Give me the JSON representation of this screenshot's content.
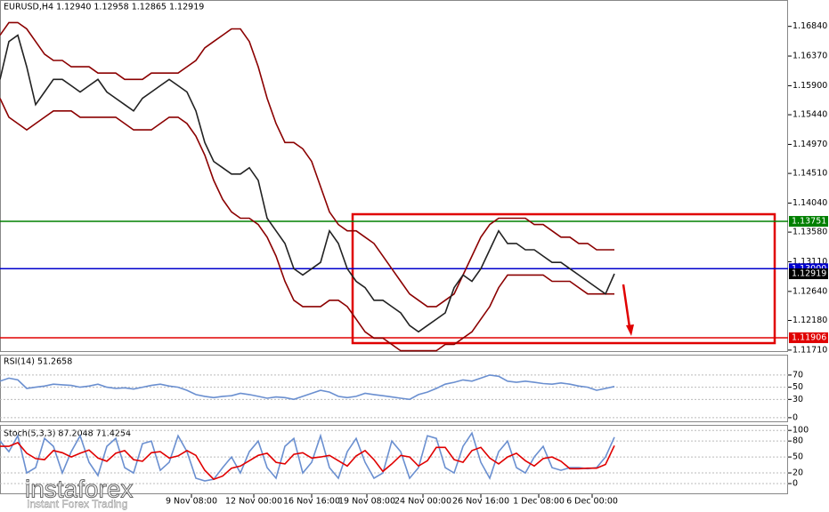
{
  "chart_data": [
    {
      "type": "line",
      "title": "EURUSD,H4 1.12940 1.12958 1.12865 1.12919",
      "xlim": [
        0,
        88.5
      ],
      "ylim": [
        1.1168,
        1.1723
      ],
      "yticks": [
        {
          "value": 1.1684,
          "label": "1.16840"
        },
        {
          "value": 1.1637,
          "label": "1.16370"
        },
        {
          "value": 1.159,
          "label": "1.15900"
        },
        {
          "value": 1.1544,
          "label": "1.15440"
        },
        {
          "value": 1.1497,
          "label": "1.14970"
        },
        {
          "value": 1.1451,
          "label": "1.14510"
        },
        {
          "value": 1.1404,
          "label": "1.14040"
        },
        {
          "value": 1.1358,
          "label": "1.13580"
        },
        {
          "value": 1.1311,
          "label": "1.13110"
        },
        {
          "value": 1.1264,
          "label": "1.12640"
        },
        {
          "value": 1.1218,
          "label": "1.12180"
        },
        {
          "value": 1.1171,
          "label": "1.11710"
        }
      ],
      "levels": [
        {
          "value": 1.13751,
          "label": "1.13751",
          "color": "#008000"
        },
        {
          "value": 1.13,
          "label": "1.13000",
          "color": "#0000cc"
        },
        {
          "value": 1.11906,
          "label": "1.11906",
          "color": "#e00000"
        }
      ],
      "price_tag": {
        "value": 1.12919,
        "label": "1.12919",
        "color": "#000000"
      },
      "series": [
        {
          "color": "#8b0000",
          "values": [
            1.167,
            1.169,
            1.169,
            1.168,
            1.166,
            1.164,
            1.163,
            1.163,
            1.162,
            1.162,
            1.162,
            1.161,
            1.161,
            1.161,
            1.16,
            1.16,
            1.16,
            1.161,
            1.161,
            1.161,
            1.161,
            1.162,
            1.163,
            1.165,
            1.166,
            1.167,
            1.168,
            1.168,
            1.166,
            1.162,
            1.157,
            1.153,
            1.15,
            1.15,
            1.149,
            1.147,
            1.143,
            1.139,
            1.137,
            1.136,
            1.136,
            1.135,
            1.134,
            1.132,
            1.13,
            1.128,
            1.126,
            1.125,
            1.124,
            1.124,
            1.125,
            1.126,
            1.129,
            1.132,
            1.135,
            1.137,
            1.138,
            1.138,
            1.138,
            1.138,
            1.137,
            1.137,
            1.136,
            1.135,
            1.135,
            1.134,
            1.134,
            1.133,
            1.133,
            1.133
          ]
        },
        {
          "color": "#8b0000",
          "values": [
            1.157,
            1.154,
            1.153,
            1.152,
            1.153,
            1.154,
            1.155,
            1.155,
            1.155,
            1.154,
            1.154,
            1.154,
            1.154,
            1.154,
            1.153,
            1.152,
            1.152,
            1.152,
            1.153,
            1.154,
            1.154,
            1.153,
            1.151,
            1.148,
            1.144,
            1.141,
            1.139,
            1.138,
            1.138,
            1.137,
            1.135,
            1.132,
            1.128,
            1.125,
            1.124,
            1.124,
            1.124,
            1.125,
            1.125,
            1.124,
            1.122,
            1.12,
            1.119,
            1.119,
            1.118,
            1.117,
            1.117,
            1.117,
            1.117,
            1.117,
            1.118,
            1.118,
            1.119,
            1.12,
            1.122,
            1.124,
            1.127,
            1.129,
            1.129,
            1.129,
            1.129,
            1.129,
            1.128,
            1.128,
            1.128,
            1.127,
            1.126,
            1.126,
            1.126,
            1.126
          ]
        },
        {
          "color": "#222222",
          "values": [
            1.16,
            1.166,
            1.167,
            1.162,
            1.156,
            1.158,
            1.16,
            1.16,
            1.159,
            1.158,
            1.159,
            1.16,
            1.158,
            1.157,
            1.156,
            1.155,
            1.157,
            1.158,
            1.159,
            1.16,
            1.159,
            1.158,
            1.155,
            1.15,
            1.147,
            1.146,
            1.145,
            1.145,
            1.146,
            1.144,
            1.138,
            1.136,
            1.134,
            1.13,
            1.129,
            1.13,
            1.131,
            1.136,
            1.134,
            1.13,
            1.128,
            1.127,
            1.125,
            1.125,
            1.124,
            1.123,
            1.121,
            1.12,
            1.121,
            1.122,
            1.123,
            1.127,
            1.129,
            1.128,
            1.13,
            1.133,
            1.136,
            1.134,
            1.134,
            1.133,
            1.133,
            1.132,
            1.131,
            1.131,
            1.13,
            1.129,
            1.128,
            1.127,
            1.126,
            1.12919
          ]
        }
      ]
    },
    {
      "type": "line",
      "title": "RSI(14) 51.2658",
      "xlim": [
        0,
        88.5
      ],
      "ylim": [
        -6,
        102
      ],
      "yticks": [
        70,
        50,
        30,
        0
      ],
      "series": [
        {
          "color": "#6a8fd0",
          "values": [
            60,
            65,
            62,
            48,
            50,
            52,
            55,
            54,
            53,
            50,
            52,
            55,
            50,
            48,
            49,
            47,
            50,
            53,
            55,
            52,
            50,
            45,
            38,
            35,
            33,
            35,
            36,
            40,
            38,
            35,
            32,
            34,
            33,
            30,
            35,
            40,
            45,
            42,
            35,
            33,
            35,
            40,
            38,
            36,
            34,
            32,
            30,
            38,
            42,
            48,
            55,
            58,
            62,
            60,
            65,
            70,
            68,
            60,
            58,
            60,
            58,
            56,
            55,
            57,
            55,
            52,
            50,
            45,
            48,
            51.2658
          ]
        }
      ]
    },
    {
      "type": "line",
      "title": "Stoch(5,3,3) 87.2048 71.4254",
      "xlim": [
        0,
        88.5
      ],
      "ylim": [
        -15,
        107
      ],
      "yticks": [
        100,
        80,
        50,
        20,
        0
      ],
      "xticks": [
        {
          "value": 21.5,
          "label": "9 Nov 08:00"
        },
        {
          "value": 28.5,
          "label": "12 Nov 00:00"
        },
        {
          "value": 35,
          "label": "16 Nov 16:00"
        },
        {
          "value": 41.2,
          "label": "19 Nov 08:00"
        },
        {
          "value": 47.5,
          "label": "24 Nov 00:00"
        },
        {
          "value": 54,
          "label": "26 Nov 16:00"
        },
        {
          "value": 60.5,
          "label": "1 Dec 08:00"
        },
        {
          "value": 66.5,
          "label": "6 Dec 00:00"
        }
      ],
      "series": [
        {
          "color": "#6a8fd0",
          "values": [
            80,
            60,
            90,
            20,
            30,
            85,
            70,
            20,
            60,
            90,
            40,
            15,
            70,
            85,
            30,
            20,
            75,
            80,
            25,
            40,
            90,
            60,
            10,
            5,
            8,
            30,
            50,
            20,
            60,
            80,
            30,
            10,
            70,
            85,
            20,
            40,
            90,
            30,
            10,
            60,
            85,
            40,
            10,
            20,
            80,
            60,
            10,
            30,
            90,
            85,
            30,
            20,
            70,
            95,
            40,
            10,
            60,
            80,
            30,
            20,
            50,
            70,
            30,
            25,
            30,
            30,
            28,
            30,
            50,
            87.2048
          ]
        },
        {
          "color": "#e00000",
          "values": [
            70,
            70,
            77,
            57,
            47,
            45,
            62,
            58,
            50,
            57,
            63,
            48,
            42,
            57,
            62,
            45,
            42,
            58,
            60,
            48,
            52,
            62,
            53,
            25,
            8,
            14,
            29,
            33,
            43,
            53,
            57,
            40,
            37,
            55,
            58,
            48,
            50,
            53,
            43,
            33,
            52,
            62,
            45,
            23,
            37,
            53,
            50,
            33,
            43,
            68,
            68,
            45,
            40,
            62,
            68,
            48,
            37,
            50,
            57,
            43,
            33,
            47,
            50,
            42,
            28,
            28,
            29,
            29,
            36,
            71.4254
          ]
        }
      ]
    }
  ],
  "watermark": {
    "brand": "instaforex",
    "slogan": "Instant Forex Trading"
  }
}
